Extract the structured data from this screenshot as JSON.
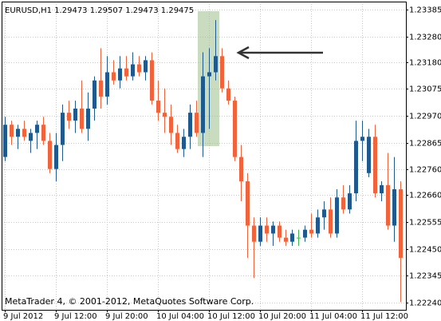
{
  "chart_data": {
    "type": "candlestick",
    "title": "EURUSD,H1  1.29473 1.29507 1.29473 1.29475",
    "footer": "MetaTrader 4, © 2001-2012, MetaQuotes Software Corp.",
    "categories": [
      "9 Jul 2012",
      null,
      null,
      null,
      null,
      null,
      null,
      null,
      "9 Jul 12:00",
      null,
      null,
      null,
      null,
      null,
      null,
      null,
      "9 Jul 20:00",
      null,
      null,
      null,
      null,
      null,
      null,
      null,
      "10 Jul 04:00",
      null,
      null,
      null,
      null,
      null,
      null,
      null,
      "10 Jul 12:00",
      null,
      null,
      null,
      null,
      null,
      null,
      null,
      "10 Jul 20:00",
      null,
      null,
      null,
      null,
      null,
      null,
      null,
      "11 Jul 04:00",
      null,
      null,
      null,
      null,
      null,
      null,
      null,
      "11 Jul 12:00",
      null,
      null,
      null,
      null,
      null,
      null
    ],
    "open": [
      1.22809,
      1.22935,
      1.22888,
      1.22919,
      1.22872,
      1.22903,
      1.22935,
      1.22872,
      1.22762,
      1.22856,
      1.22982,
      1.22951,
      1.22998,
      1.22919,
      1.22998,
      1.23108,
      1.23045,
      1.2314,
      1.23108,
      1.23155,
      1.23124,
      1.23171,
      1.2314,
      1.23187,
      1.23029,
      1.22982,
      1.22966,
      1.22903,
      1.2284,
      1.22888,
      1.22982,
      1.22903,
      1.23124,
      1.2314,
      1.23203,
      1.23077,
      1.23029,
      1.22809,
      1.22714,
      1.22541,
      1.22478,
      1.22541,
      1.2251,
      1.22541,
      1.22494,
      1.22478,
      1.22494,
      1.22494,
      1.22525,
      1.2251,
      1.22573,
      1.22604,
      1.2251,
      1.22651,
      1.22604,
      1.22667,
      1.22872,
      1.22746,
      1.22888,
      1.22667,
      1.22699,
      1.22541,
      1.22683
    ],
    "high": [
      1.22966,
      1.22951,
      1.22935,
      1.22951,
      1.22919,
      1.22951,
      1.22966,
      1.22903,
      1.22903,
      1.23014,
      1.23029,
      1.23029,
      1.23108,
      1.23061,
      1.23124,
      1.23234,
      1.23203,
      1.23187,
      1.23203,
      1.23203,
      1.23218,
      1.23203,
      1.23203,
      1.23218,
      1.23108,
      1.23077,
      1.23014,
      1.22935,
      1.22919,
      1.23014,
      1.23029,
      1.23218,
      1.23234,
      1.23344,
      1.23234,
      1.23108,
      1.23045,
      1.22856,
      1.22746,
      1.22573,
      1.22573,
      1.22573,
      1.22557,
      1.22557,
      1.22525,
      1.22525,
      1.22525,
      1.22541,
      1.22588,
      1.22604,
      1.22636,
      1.22651,
      1.22683,
      1.22699,
      1.22699,
      1.22951,
      1.22951,
      1.22919,
      1.22935,
      1.22714,
      1.22825,
      1.22809,
      1.22714
    ],
    "low": [
      1.22793,
      1.22856,
      1.2284,
      1.22872,
      1.22825,
      1.2284,
      1.22856,
      1.22746,
      1.22714,
      1.22793,
      1.22919,
      1.22903,
      1.22903,
      1.22872,
      1.22951,
      1.22998,
      1.23014,
      1.23092,
      1.23077,
      1.23108,
      1.23108,
      1.23124,
      1.23108,
      1.23014,
      1.22951,
      1.22903,
      1.22856,
      1.22825,
      1.22809,
      1.2284,
      1.22888,
      1.22809,
      1.22919,
      1.23108,
      1.23061,
      1.23014,
      1.22793,
      1.22636,
      1.22415,
      1.22336,
      1.22462,
      1.22478,
      1.22462,
      1.22478,
      1.22462,
      1.22462,
      1.22462,
      1.22478,
      1.22494,
      1.22494,
      1.22525,
      1.22494,
      1.22494,
      1.22588,
      1.22588,
      1.22636,
      1.22793,
      1.2273,
      1.22651,
      1.22636,
      1.22525,
      1.22478,
      1.22242
    ],
    "close": [
      1.22935,
      1.22888,
      1.22919,
      1.22888,
      1.22903,
      1.22935,
      1.22872,
      1.22762,
      1.22856,
      1.22982,
      1.22951,
      1.22998,
      1.22919,
      1.22998,
      1.23108,
      1.23045,
      1.2314,
      1.23108,
      1.23155,
      1.23124,
      1.23171,
      1.2314,
      1.23187,
      1.23029,
      1.22982,
      1.22966,
      1.22903,
      1.2284,
      1.22888,
      1.22982,
      1.22903,
      1.23124,
      1.2314,
      1.23203,
      1.23077,
      1.23029,
      1.22809,
      1.22714,
      1.22541,
      1.22478,
      1.22541,
      1.2251,
      1.22541,
      1.22494,
      1.22478,
      1.2251,
      1.22494,
      1.22525,
      1.2251,
      1.22573,
      1.22604,
      1.2251,
      1.22651,
      1.22604,
      1.22667,
      1.22872,
      1.22888,
      1.22888,
      1.22667,
      1.22699,
      1.22541,
      1.22683,
      1.22415
    ],
    "colors": {
      "up": "#1f5a8e",
      "down": "#f1633b",
      "doji": "#3cb44a"
    },
    "ylim": [
      1.22212,
      1.23416
    ],
    "yticks": [
      1.23385,
      {
        "value": 1.2328,
        "label": "1.23280"
      },
      {
        "value": 1.2318,
        "label": "1.23180"
      },
      1.23075,
      {
        "value": 1.2297,
        "label": "1.22970"
      },
      1.22865,
      {
        "value": 1.2276,
        "label": "1.22760"
      },
      {
        "value": 1.2266,
        "label": "1.22660"
      },
      1.22555,
      {
        "value": 1.2245,
        "label": "1.22450"
      },
      1.22345,
      {
        "value": 1.2224,
        "label": "1.22240"
      }
    ],
    "grid": true
  }
}
